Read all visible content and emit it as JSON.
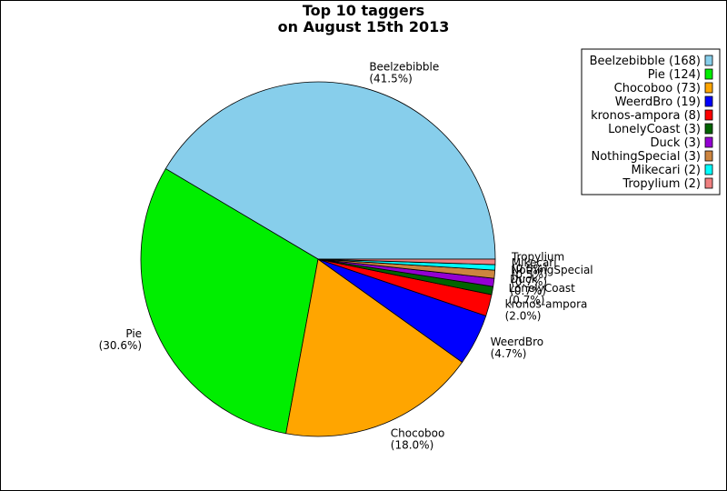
{
  "chart_data": {
    "type": "pie",
    "title": [
      "Top 10 taggers",
      "on August 15th 2013"
    ],
    "slices": [
      {
        "label": "Beelzebibble",
        "value": 168,
        "percent": "(41.5%)",
        "legend": "Beelzebibble (168)",
        "color": "#87ceeb"
      },
      {
        "label": "Pie",
        "value": 124,
        "percent": "(30.6%)",
        "legend": "Pie (124)",
        "color": "#00ee00"
      },
      {
        "label": "Chocoboo",
        "value": 73,
        "percent": "(18.0%)",
        "legend": "Chocoboo (73)",
        "color": "#ffa500"
      },
      {
        "label": "WeerdBro",
        "value": 19,
        "percent": "(4.7%)",
        "legend": "WeerdBro (19)",
        "color": "#0000ff"
      },
      {
        "label": "kronos-ampora",
        "value": 8,
        "percent": "(2.0%)",
        "legend": "kronos-ampora (8)",
        "color": "#ff0000"
      },
      {
        "label": "LonelyCoast",
        "value": 3,
        "percent": "(0.7%)",
        "legend": "LonelyCoast (3)",
        "color": "#006400"
      },
      {
        "label": "Duck",
        "value": 3,
        "percent": "(0.7%)",
        "legend": "Duck (3)",
        "color": "#9400d3"
      },
      {
        "label": "NothingSpecial",
        "value": 3,
        "percent": "(0.7%)",
        "legend": "NothingSpecial (3)",
        "color": "#cd853f"
      },
      {
        "label": "Mikecari",
        "value": 2,
        "percent": "(0.5%)",
        "legend": "Mikecari (2)",
        "color": "#00ffff"
      },
      {
        "label": "Tropylium",
        "value": 2,
        "percent": "(0.5%)",
        "legend": "Tropylium (2)",
        "color": "#f08080"
      }
    ],
    "legend_position": "top-right",
    "start": "3 o'clock",
    "direction": "counter-clockwise"
  }
}
